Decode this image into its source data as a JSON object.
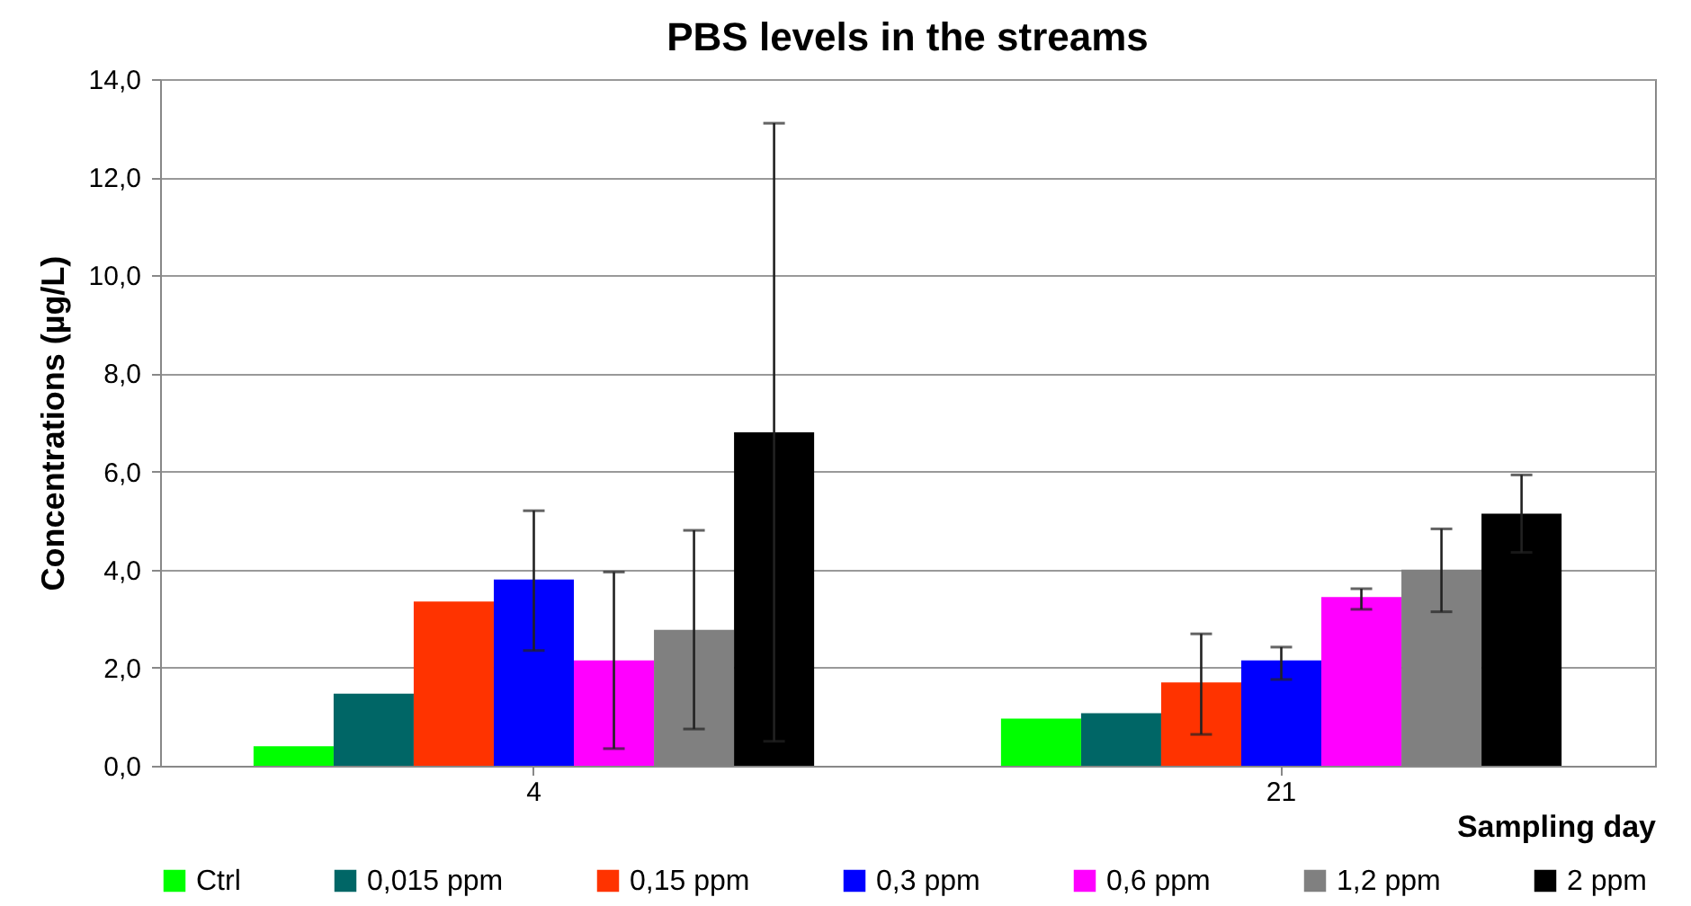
{
  "chart_data": {
    "type": "bar",
    "title": "PBS levels in the streams",
    "xlabel": "Sampling day",
    "ylabel": "Concentrations (µg/L)",
    "categories": [
      "4",
      "21"
    ],
    "series": [
      {
        "name": "Ctrl",
        "color": "#00ff00",
        "values": [
          0.4,
          0.96
        ]
      },
      {
        "name": "0,015 ppm",
        "color": "#006666",
        "values": [
          1.47,
          1.07
        ]
      },
      {
        "name": "0,15 ppm",
        "color": "#ff3300",
        "values": [
          3.35,
          1.7
        ],
        "errors": [
          null,
          [
            0.64,
            2.69
          ]
        ]
      },
      {
        "name": "0,3 ppm",
        "color": "#0000ff",
        "values": [
          3.8,
          2.15
        ],
        "errors": [
          [
            2.35,
            5.2
          ],
          [
            1.76,
            2.42
          ]
        ]
      },
      {
        "name": "0,6 ppm",
        "color": "#ff00ff",
        "values": [
          2.15,
          3.44
        ],
        "errors": [
          [
            0.35,
            3.95
          ],
          [
            3.19,
            3.61
          ]
        ]
      },
      {
        "name": "1,2 ppm",
        "color": "#808080",
        "values": [
          2.77,
          4.0
        ],
        "errors": [
          [
            0.75,
            4.8
          ],
          [
            3.14,
            4.83
          ]
        ]
      },
      {
        "name": "2 ppm",
        "color": "#000000",
        "values": [
          6.8,
          5.14
        ],
        "errors": [
          [
            0.5,
            13.1
          ],
          [
            4.35,
            5.93
          ]
        ]
      }
    ],
    "ylim": [
      0,
      14
    ],
    "yticks": [
      {
        "value": 0,
        "label": "0,0"
      },
      {
        "value": 2,
        "label": "2,0"
      },
      {
        "value": 4,
        "label": "4,0"
      },
      {
        "value": 6,
        "label": "6,0"
      },
      {
        "value": 8,
        "label": "8,0"
      },
      {
        "value": 10,
        "label": "10,0"
      },
      {
        "value": 12,
        "label": "12,0"
      },
      {
        "value": 14,
        "label": "14,0"
      }
    ],
    "grid": "y",
    "legend": "bottom"
  }
}
